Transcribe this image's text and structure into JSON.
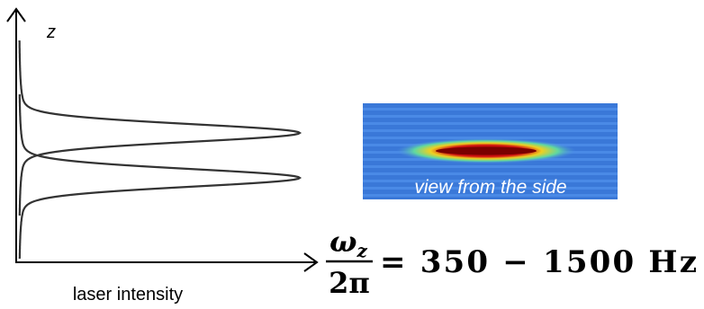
{
  "axis": {
    "y_label": "z",
    "x_label": "laser intensity"
  },
  "image": {
    "caption": "view from the side"
  },
  "equation": {
    "numerator": "ω",
    "numerator_sub": "z",
    "denominator": "2π",
    "rhs": "= 350 − 1500 Hz"
  }
}
